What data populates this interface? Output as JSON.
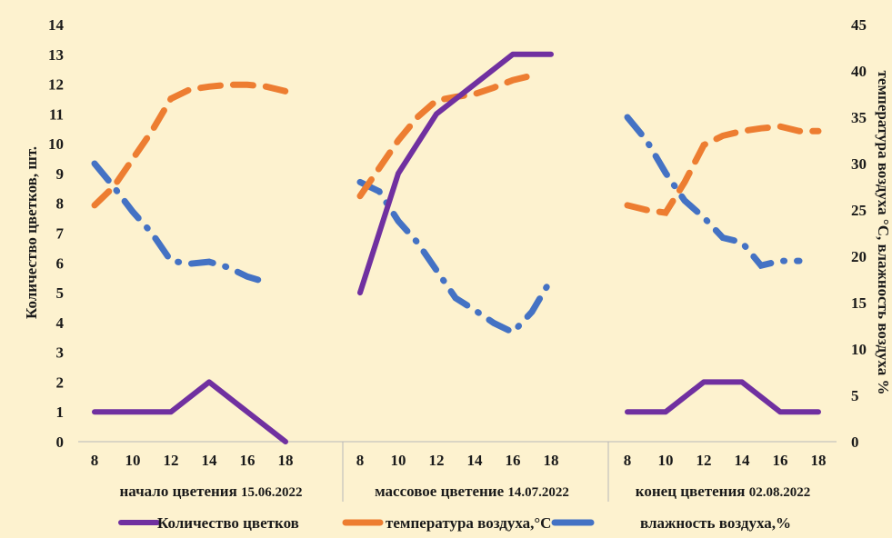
{
  "chart_data": {
    "type": "line",
    "background": "#fdf2cf",
    "grid": false,
    "legend_position": "bottom",
    "ylabel_left": "Количество цветков, шт.",
    "ylabel_right": "температура воздуха °C, влажность воздуха %",
    "ylim_left": [
      0,
      14
    ],
    "ylim_right": [
      0,
      45
    ],
    "yticks_left": [
      "0",
      "1",
      "2",
      "3",
      "4",
      "5",
      "6",
      "7",
      "8",
      "9",
      "10",
      "11",
      "12",
      "13",
      "14"
    ],
    "yticks_right": [
      "0",
      "5",
      "10",
      "15",
      "20",
      "25",
      "30",
      "35",
      "40",
      "45"
    ],
    "x_ticks": [
      "8",
      "10",
      "12",
      "14",
      "16",
      "18"
    ],
    "groups": [
      {
        "label": "начало цветения",
        "date": "15.06.2022",
        "flowers": [
          [
            8,
            1
          ],
          [
            10,
            1
          ],
          [
            12,
            1
          ],
          [
            14,
            2
          ],
          [
            16,
            1
          ],
          [
            18,
            0
          ]
        ],
        "temperature": [
          [
            8,
            25.5
          ],
          [
            9,
            27.5
          ],
          [
            10,
            30.5
          ],
          [
            11,
            33.5
          ],
          [
            12,
            37
          ],
          [
            13,
            38
          ],
          [
            14,
            38.3
          ],
          [
            15,
            38.5
          ],
          [
            16,
            38.5
          ],
          [
            17,
            38.3
          ],
          [
            18,
            37.8
          ]
        ],
        "humidity": [
          [
            8,
            30
          ],
          [
            9,
            27.5
          ],
          [
            10,
            24.8
          ],
          [
            11,
            22.5
          ],
          [
            12,
            19.5
          ],
          [
            13,
            19.2
          ],
          [
            14,
            19.4
          ],
          [
            15,
            18.8
          ],
          [
            16,
            17.8
          ],
          [
            17,
            17.2
          ]
        ]
      },
      {
        "label": "массовое цветение",
        "date": "14.07.2022",
        "flowers": [
          [
            8,
            5
          ],
          [
            10,
            9
          ],
          [
            12,
            11
          ],
          [
            14,
            12
          ],
          [
            16,
            13
          ],
          [
            18,
            13
          ]
        ],
        "temperature": [
          [
            8,
            26.5
          ],
          [
            9,
            29.5
          ],
          [
            10,
            32.5
          ],
          [
            11,
            35
          ],
          [
            12,
            36.8
          ],
          [
            13,
            37.2
          ],
          [
            14,
            37.5
          ],
          [
            15,
            38.2
          ],
          [
            16,
            39
          ],
          [
            17,
            39.5
          ]
        ],
        "humidity": [
          [
            8,
            28
          ],
          [
            9,
            27
          ],
          [
            10,
            23.8
          ],
          [
            11,
            21.5
          ],
          [
            12,
            18.5
          ],
          [
            13,
            15.5
          ],
          [
            14,
            14.2
          ],
          [
            15,
            12.8
          ],
          [
            16,
            11.8
          ],
          [
            17,
            14
          ],
          [
            18,
            17.5
          ]
        ]
      },
      {
        "label": "конец цветения",
        "date": "02.08.2022",
        "flowers": [
          [
            8,
            1
          ],
          [
            10,
            1
          ],
          [
            12,
            2
          ],
          [
            14,
            2
          ],
          [
            16,
            1
          ],
          [
            18,
            1
          ]
        ],
        "temperature": [
          [
            8,
            25.5
          ],
          [
            9,
            25
          ],
          [
            10,
            24.7
          ],
          [
            11,
            28
          ],
          [
            12,
            32
          ],
          [
            13,
            33
          ],
          [
            14,
            33.5
          ],
          [
            15,
            33.8
          ],
          [
            16,
            34
          ],
          [
            17,
            33.5
          ],
          [
            18,
            33.5
          ]
        ],
        "humidity": [
          [
            8,
            35
          ],
          [
            9,
            32.5
          ],
          [
            10,
            29
          ],
          [
            11,
            26
          ],
          [
            12,
            24.2
          ],
          [
            13,
            22
          ],
          [
            14,
            21.5
          ],
          [
            15,
            19
          ],
          [
            16,
            19.5
          ],
          [
            17,
            19.5
          ]
        ]
      }
    ],
    "series": [
      {
        "key": "flowers",
        "name": "Количество цветков",
        "color": "#7030a0",
        "axis": "left",
        "style": "solid"
      },
      {
        "key": "temperature",
        "name": "температура воздуха,°С",
        "color": "#ed7d31",
        "axis": "right",
        "style": "dashed"
      },
      {
        "key": "humidity",
        "name": "влажность воздуха,%",
        "color": "#4472c4",
        "axis": "right",
        "style": "dash-dot"
      }
    ]
  }
}
